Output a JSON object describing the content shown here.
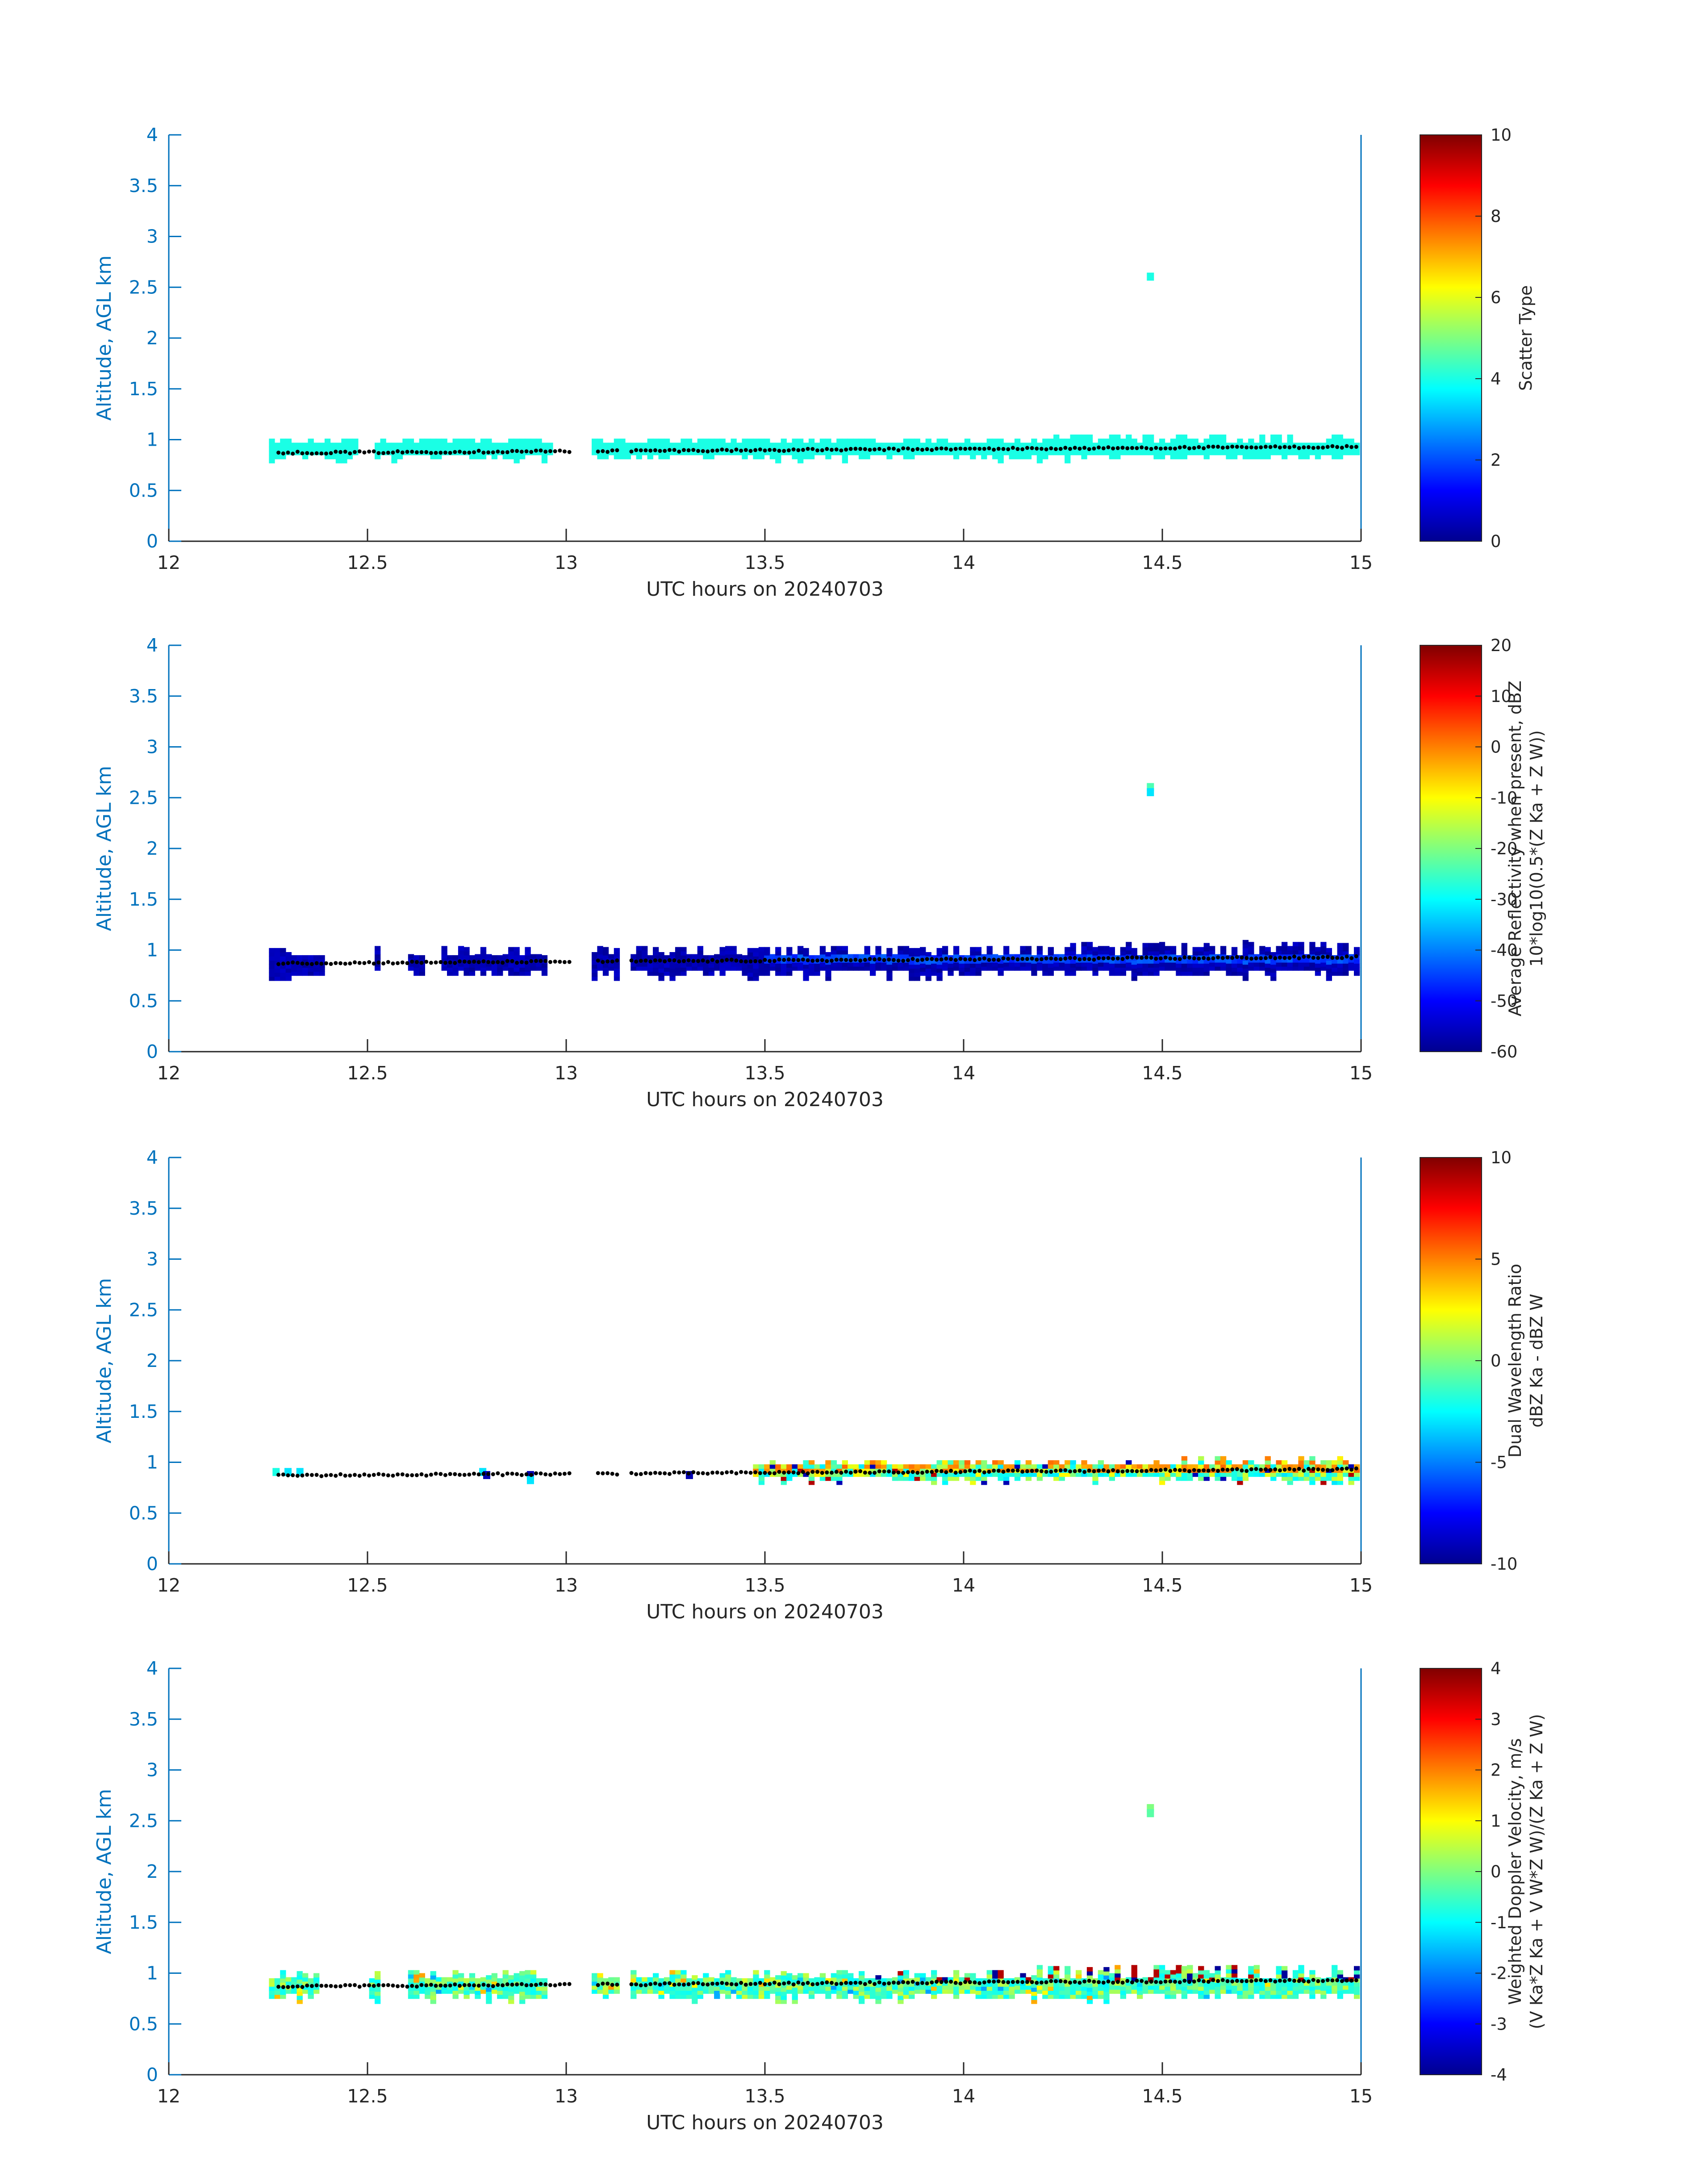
{
  "figure": {
    "colormap": "jet",
    "axis_color": "#0072bd",
    "text_color": "#262626",
    "marker_color": "#000000"
  },
  "chart_data": [
    {
      "type": "heatmap",
      "id": "scatter-type",
      "title": "",
      "xlabel": "UTC hours on 20240703",
      "ylabel": "Altitude, AGL km",
      "xlim": [
        12,
        15
      ],
      "ylim": [
        0,
        4
      ],
      "xticks": [
        "12",
        "12.5",
        "13",
        "13.5",
        "14",
        "14.5",
        "15"
      ],
      "yticks": [
        "0",
        "0.5",
        "1",
        "1.5",
        "2",
        "2.5",
        "3",
        "3.5",
        "4"
      ],
      "colorbar": {
        "label_lines": [
          "Scatter Type"
        ],
        "range": [
          0,
          10
        ],
        "ticks": [
          "0",
          "2",
          "4",
          "6",
          "8",
          "10"
        ]
      },
      "layer": {
        "segments": [
          [
            12.25,
            12.48
          ],
          [
            12.52,
            12.97
          ],
          [
            13.06,
            15.0
          ]
        ],
        "pattern": "uniform",
        "value": 4,
        "base_low": 0.85,
        "base_high": 0.95,
        "bottom_jitter": 0.04,
        "top_jitter": 0.05,
        "missing_from": null
      },
      "isolated_points": [
        {
          "x": 14.47,
          "y": 2.6,
          "value": 4
        }
      ],
      "cloud_base_dots": {
        "segments": [
          [
            12.27,
            13.02
          ],
          [
            13.08,
            13.13
          ],
          [
            13.16,
            15.0
          ]
        ],
        "y_start": 0.87,
        "y_end": 0.93
      }
    },
    {
      "type": "heatmap",
      "id": "reflectivity",
      "title": "",
      "xlabel": "UTC hours on 20240703",
      "ylabel": "Altitude, AGL km",
      "xlim": [
        12,
        15
      ],
      "ylim": [
        0,
        4
      ],
      "xticks": [
        "12",
        "12.5",
        "13",
        "13.5",
        "14",
        "14.5",
        "15"
      ],
      "yticks": [
        "0",
        "0.5",
        "1",
        "1.5",
        "2",
        "2.5",
        "3",
        "3.5",
        "4"
      ],
      "colorbar": {
        "label_lines": [
          "Average Reflectivity when present, dBZ",
          "10*log10(0.5*(Z_Ka + Z_W))"
        ],
        "range": [
          -60,
          20
        ],
        "ticks": [
          "-60",
          "-50",
          "-40",
          "-30",
          "-20",
          "-10",
          "0",
          "10",
          "20"
        ]
      },
      "layer": {
        "segments": [
          [
            12.25,
            12.39
          ],
          [
            12.52,
            12.53
          ],
          [
            12.6,
            12.64
          ],
          [
            12.68,
            12.95
          ],
          [
            13.07,
            13.13
          ],
          [
            13.16,
            15.0
          ]
        ],
        "pattern": "reflectivity",
        "value_range": [
          -58,
          -50
        ],
        "base_low": 0.8,
        "base_high": 0.95,
        "bottom_jitter": 0.05,
        "top_jitter": 0.06,
        "missing_from": null
      },
      "isolated_points": [
        {
          "x": 14.47,
          "y": 2.6,
          "value": -24
        },
        {
          "x": 14.47,
          "y": 2.55,
          "value": -32
        }
      ],
      "cloud_base_dots": {
        "segments": [
          [
            12.27,
            13.02
          ],
          [
            13.08,
            13.13
          ],
          [
            13.16,
            15.0
          ]
        ],
        "y_start": 0.87,
        "y_end": 0.93
      }
    },
    {
      "type": "heatmap",
      "id": "dual-wavelength-ratio",
      "title": "",
      "xlabel": "UTC hours on 20240703",
      "ylabel": "Altitude, AGL km",
      "xlim": [
        12,
        15
      ],
      "ylim": [
        0,
        4
      ],
      "xticks": [
        "12",
        "12.5",
        "13",
        "13.5",
        "14",
        "14.5",
        "15"
      ],
      "yticks": [
        "0",
        "0.5",
        "1",
        "1.5",
        "2",
        "2.5",
        "3",
        "3.5",
        "4"
      ],
      "colorbar": {
        "label_lines": [
          "Dual Wavelength Ratio",
          "dBZ_Ka - dBZ_W"
        ],
        "range": [
          -10,
          10
        ],
        "ticks": [
          "-10",
          "-5",
          "0",
          "5",
          "10"
        ]
      },
      "layer": {
        "segments": [
          [
            13.47,
            15.0
          ]
        ],
        "pattern": "dwr",
        "base_low": 0.86,
        "base_high": 0.95,
        "bottom_jitter": 0.04,
        "top_jitter": 0.05,
        "missing_from": null
      },
      "isolated_points": [
        {
          "x": 12.27,
          "y": 0.9,
          "value": -2
        },
        {
          "x": 12.3,
          "y": 0.9,
          "value": -3
        },
        {
          "x": 12.33,
          "y": 0.9,
          "value": -3
        },
        {
          "x": 12.79,
          "y": 0.9,
          "value": -3
        },
        {
          "x": 12.8,
          "y": 0.87,
          "value": -9
        },
        {
          "x": 12.91,
          "y": 0.87,
          "value": -9
        },
        {
          "x": 12.91,
          "y": 0.82,
          "value": -3
        },
        {
          "x": 13.31,
          "y": 0.87,
          "value": -9
        }
      ],
      "cloud_base_dots": {
        "segments": [
          [
            12.27,
            13.02
          ],
          [
            13.08,
            13.13
          ],
          [
            13.16,
            15.0
          ]
        ],
        "y_start": 0.87,
        "y_end": 0.93
      }
    },
    {
      "type": "heatmap",
      "id": "doppler-velocity",
      "title": "",
      "xlabel": "UTC hours on 20240703",
      "ylabel": "Altitude, AGL km",
      "xlim": [
        12,
        15
      ],
      "ylim": [
        0,
        4
      ],
      "xticks": [
        "12",
        "12.5",
        "13",
        "13.5",
        "14",
        "14.5",
        "15"
      ],
      "yticks": [
        "0",
        "0.5",
        "1",
        "1.5",
        "2",
        "2.5",
        "3",
        "3.5",
        "4"
      ],
      "colorbar": {
        "label_lines": [
          "Weighted Doppler Velocity, m/s",
          "(V_Ka*Z_Ka + V_W*Z_W)/(Z_Ka + Z_W)"
        ],
        "range": [
          -4,
          4
        ],
        "ticks": [
          "-4",
          "-3",
          "-2",
          "-1",
          "0",
          "1",
          "2",
          "3",
          "4"
        ]
      },
      "layer": {
        "segments": [
          [
            12.25,
            12.38
          ],
          [
            12.51,
            12.53
          ],
          [
            12.6,
            12.95
          ],
          [
            13.07,
            13.13
          ],
          [
            13.16,
            15.0
          ]
        ],
        "pattern": "velocity",
        "base_low": 0.8,
        "base_high": 0.95,
        "bottom_jitter": 0.05,
        "top_jitter": 0.05,
        "missing_from": null
      },
      "isolated_points": [
        {
          "x": 14.47,
          "y": 2.62,
          "value": 0.0
        },
        {
          "x": 14.47,
          "y": 2.57,
          "value": -0.3
        }
      ],
      "cloud_base_dots": {
        "segments": [
          [
            12.27,
            13.02
          ],
          [
            13.08,
            13.13
          ],
          [
            13.16,
            15.0
          ]
        ],
        "y_start": 0.87,
        "y_end": 0.93
      }
    }
  ]
}
